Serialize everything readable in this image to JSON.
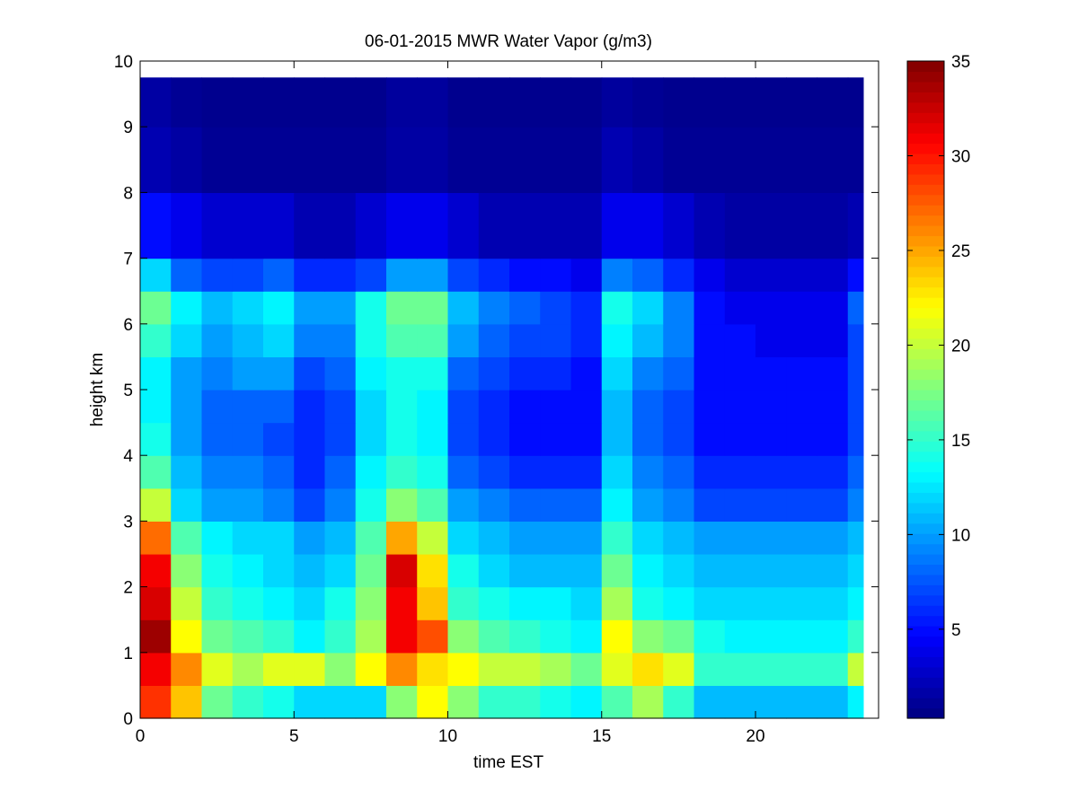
{
  "chart_data": {
    "type": "heatmap",
    "title": "06-01-2015 MWR Water Vapor (g/m3)",
    "xlabel": "time EST",
    "ylabel": "height km",
    "xlim": [
      0,
      24
    ],
    "ylim": [
      0,
      10
    ],
    "x_ticks": [
      "0",
      "5",
      "10",
      "15",
      "20"
    ],
    "y_ticks": [
      "0",
      "1",
      "2",
      "3",
      "4",
      "5",
      "6",
      "7",
      "8",
      "9",
      "10"
    ],
    "colormap": "jet",
    "clim": [
      0.3,
      35
    ],
    "colorbar_ticks": [
      "5",
      "10",
      "15",
      "20",
      "25",
      "30",
      "35"
    ],
    "x_bins": [
      0,
      1,
      2,
      3,
      4,
      5,
      6,
      7,
      8,
      9,
      10,
      11,
      12,
      13,
      14,
      15,
      16,
      17,
      18,
      19,
      20,
      21,
      22,
      23
    ],
    "y_bins": [
      0,
      0.5,
      1,
      1.5,
      2,
      2.5,
      3,
      3.5,
      4,
      4.5,
      5,
      5.5,
      6,
      6.5,
      7,
      8,
      9
    ],
    "y_top": 9.75,
    "values": [
      [
        29,
        24,
        17,
        15,
        14,
        12,
        12,
        12,
        18,
        22,
        18,
        15,
        15,
        14,
        13,
        16,
        19,
        15,
        11,
        11,
        11,
        11,
        11,
        13
      ],
      [
        31,
        26,
        21,
        19,
        21,
        21,
        18,
        22,
        26,
        23,
        22,
        20,
        20,
        19,
        17,
        21,
        23,
        21,
        15,
        15,
        15,
        15,
        15,
        20
      ],
      [
        34,
        22,
        17,
        16,
        15,
        13,
        15,
        19,
        31,
        28,
        18,
        16,
        15,
        14,
        13,
        22,
        18,
        17,
        14,
        13,
        13,
        13,
        13,
        15
      ],
      [
        32,
        20,
        15,
        14,
        13,
        12,
        14,
        18,
        31,
        24,
        15,
        14,
        13,
        13,
        12,
        19,
        14,
        13,
        12,
        12,
        12,
        12,
        12,
        13
      ],
      [
        31,
        18,
        14,
        13,
        12,
        11,
        12,
        17,
        32,
        23,
        14,
        12,
        11,
        11,
        11,
        17,
        13,
        12,
        11,
        11,
        11,
        11,
        11,
        12
      ],
      [
        27,
        16,
        13,
        12,
        12,
        10,
        11,
        16,
        25,
        20,
        12,
        11,
        10,
        10,
        10,
        15,
        12,
        11,
        10,
        10,
        10,
        10,
        10,
        11
      ],
      [
        20,
        12,
        10,
        10,
        9,
        7,
        9,
        14,
        18,
        16,
        10,
        9,
        8,
        8,
        8,
        13,
        10,
        9,
        7,
        7,
        7,
        7,
        7,
        9
      ],
      [
        16,
        11,
        9,
        9,
        8,
        6,
        8,
        13,
        15,
        14,
        8,
        7,
        6,
        6,
        6,
        12,
        9,
        8,
        6,
        6,
        6,
        6,
        6,
        8
      ],
      [
        14,
        10,
        8,
        8,
        7,
        6,
        7,
        12,
        14,
        13,
        7,
        6,
        5,
        5,
        5,
        11,
        8,
        7,
        5,
        5,
        5,
        5,
        5,
        7
      ],
      [
        13,
        10,
        8,
        8,
        8,
        6,
        7,
        12,
        14,
        13,
        7,
        6,
        5,
        5,
        5,
        11,
        8,
        7,
        5,
        5,
        5,
        5,
        5,
        7
      ],
      [
        13,
        10,
        9,
        10,
        10,
        7,
        8,
        13,
        14,
        14,
        8,
        7,
        6,
        6,
        5,
        12,
        9,
        8,
        5,
        5,
        5,
        5,
        5,
        7
      ],
      [
        15,
        12,
        10,
        11,
        12,
        9,
        9,
        14,
        16,
        16,
        10,
        8,
        7,
        7,
        6,
        13,
        11,
        9,
        5,
        5,
        4,
        4,
        4,
        7
      ],
      [
        17,
        13,
        11,
        12,
        13,
        10,
        10,
        14,
        17,
        17,
        11,
        9,
        8,
        7,
        6,
        14,
        12,
        9,
        5,
        4,
        4,
        4,
        4,
        8
      ],
      [
        12,
        8,
        7,
        7,
        8,
        6,
        6,
        7,
        10,
        10,
        7,
        6,
        5,
        5,
        4,
        9,
        8,
        6,
        4,
        3,
        3,
        3,
        3,
        5
      ],
      [
        5,
        4,
        3,
        3,
        3,
        2,
        2,
        3,
        4,
        4,
        3,
        2,
        2,
        2,
        2,
        4,
        4,
        3,
        2,
        1.5,
        1.5,
        1.5,
        1.5,
        2
      ],
      [
        2,
        1.5,
        1,
        1,
        1,
        1,
        1,
        1,
        1.5,
        1.5,
        1,
        1,
        1,
        1,
        1,
        2,
        1.5,
        1,
        1,
        1,
        1,
        1,
        1,
        1
      ],
      [
        1.5,
        1,
        0.8,
        0.8,
        0.8,
        0.8,
        0.8,
        0.8,
        1.3,
        1.3,
        0.8,
        0.8,
        0.8,
        0.8,
        0.8,
        1.3,
        1,
        0.8,
        0.8,
        0.8,
        0.8,
        0.8,
        0.8,
        0.8
      ]
    ]
  }
}
